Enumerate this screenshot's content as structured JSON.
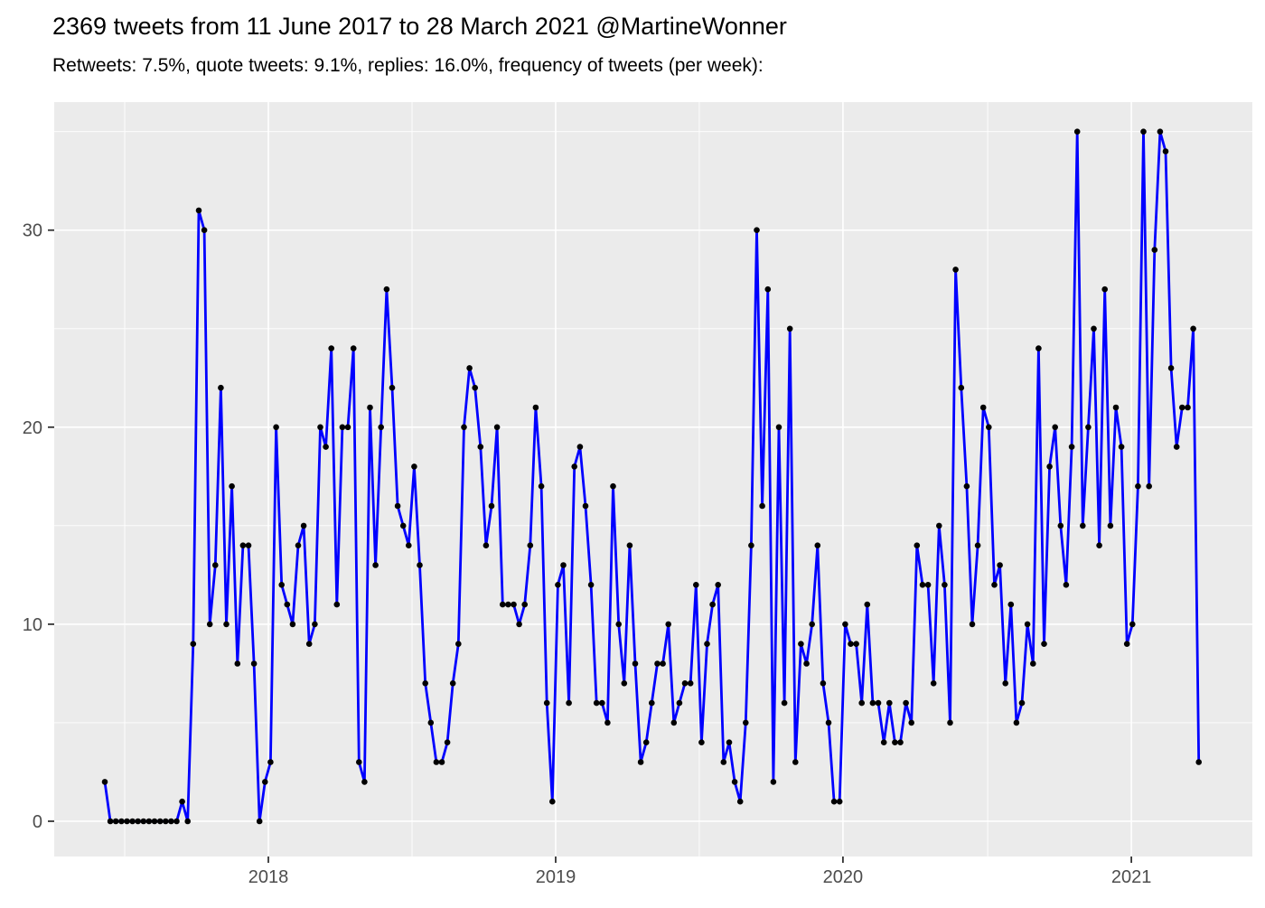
{
  "header": {
    "title": "2369 tweets from 11 June 2017 to 28 March 2021 @MartineWonner",
    "subtitle": "Retweets: 7.5%, quote tweets: 9.1%, replies: 16.0%, frequency of tweets (per week):"
  },
  "chart_data": {
    "type": "line",
    "title": "2369 tweets from 11 June 2017 to 28 March 2021 @MartineWonner",
    "subtitle": "Retweets: 7.5%, quote tweets: 9.1%, replies: 16.0%, frequency of tweets (per week):",
    "series_name": "tweets per week",
    "x_unit": "week index starting 11 June 2017",
    "start_week_label": "11 June 2017",
    "end_week_label": "28 March 2021",
    "total_tweets": 2369,
    "values": [
      2,
      0,
      0,
      0,
      0,
      0,
      0,
      0,
      0,
      0,
      0,
      0,
      0,
      0,
      1,
      0,
      9,
      31,
      30,
      10,
      13,
      22,
      10,
      17,
      8,
      14,
      14,
      8,
      0,
      2,
      3,
      20,
      12,
      11,
      10,
      14,
      15,
      9,
      10,
      20,
      19,
      24,
      11,
      20,
      20,
      24,
      3,
      2,
      21,
      13,
      20,
      27,
      22,
      16,
      15,
      14,
      18,
      13,
      7,
      5,
      3,
      3,
      4,
      7,
      9,
      20,
      23,
      22,
      19,
      14,
      16,
      20,
      11,
      11,
      11,
      10,
      11,
      14,
      21,
      17,
      6,
      1,
      12,
      13,
      6,
      18,
      19,
      16,
      12,
      6,
      6,
      5,
      17,
      10,
      7,
      14,
      8,
      3,
      4,
      6,
      8,
      8,
      10,
      5,
      6,
      7,
      7,
      12,
      4,
      9,
      11,
      12,
      3,
      4,
      2,
      1,
      5,
      14,
      30,
      16,
      27,
      2,
      20,
      6,
      25,
      3,
      9,
      8,
      10,
      14,
      7,
      5,
      1,
      1,
      10,
      9,
      9,
      6,
      11,
      6,
      6,
      4,
      6,
      4,
      4,
      6,
      5,
      14,
      12,
      12,
      7,
      15,
      12,
      5,
      28,
      22,
      17,
      10,
      14,
      21,
      20,
      12,
      13,
      7,
      11,
      5,
      6,
      10,
      8,
      24,
      9,
      18,
      20,
      15,
      12,
      19,
      35,
      15,
      20,
      25,
      14,
      27,
      15,
      21,
      19,
      9,
      10,
      17,
      35,
      17,
      29,
      35,
      34,
      23,
      19,
      21,
      21,
      25,
      3
    ],
    "x_ticks": [
      {
        "label": "2018",
        "week": 29.6
      },
      {
        "label": "2019",
        "week": 81.6
      },
      {
        "label": "2020",
        "week": 133.6
      },
      {
        "label": "2021",
        "week": 185.8
      }
    ],
    "x_minor_weeks": [
      3.6,
      55.6,
      107.6,
      159.8
    ],
    "y_ticks": [
      0,
      10,
      20,
      30
    ],
    "y_minor_ticks": [
      5,
      15,
      25,
      35
    ],
    "xlim_weeks": [
      -9.16,
      207.7
    ],
    "ylim": [
      -1.79,
      36.5
    ],
    "grid": true,
    "legend": "none",
    "colors": {
      "line": "#0000FF",
      "point": "#000000",
      "panel_bg": "#EBEBEB",
      "grid": "#FFFFFF",
      "axis_text": "#4D4D4D",
      "tick_mark": "#333333",
      "title_text": "#000000"
    }
  }
}
